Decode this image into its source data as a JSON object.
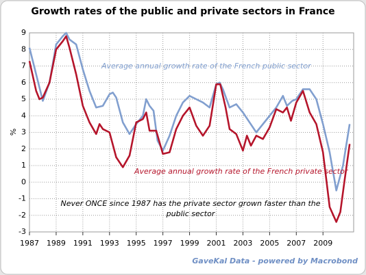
{
  "chart_data": {
    "type": "line",
    "title": "Growth rates of the public and private sectors in France",
    "ylabel": "%",
    "source": "GaveKal Data - powered by Macrobond",
    "annotations": [
      "Average annual growth rate of the French public sector",
      "Average annual growth rate of the French private sector",
      "Never ONCE since 1987 has the private sector grown faster than the",
      "public sector"
    ],
    "xlim": [
      1987,
      2011.3
    ],
    "xticks": [
      1987,
      1989,
      1991,
      1993,
      1995,
      1997,
      1999,
      2001,
      2003,
      2005,
      2007,
      2009
    ],
    "ylim": [
      -3,
      9
    ],
    "yticks": [
      -3,
      -2,
      -1,
      0,
      1,
      2,
      3,
      4,
      5,
      6,
      7,
      8,
      9
    ],
    "grid": true,
    "series": [
      {
        "name": "Average annual growth rate of the French public sector",
        "color": "#819fcf",
        "x": [
          1987,
          1987.5,
          1988,
          1988.5,
          1989,
          1989.5,
          1989.75,
          1990,
          1990.5,
          1991,
          1991.5,
          1992,
          1992.5,
          1993,
          1993.25,
          1993.5,
          1994,
          1994.5,
          1995,
          1995.5,
          1995.75,
          1996,
          1996.3,
          1996.6,
          1997,
          1997.5,
          1998,
          1998.5,
          1999,
          1999.5,
          2000,
          2000.5,
          2001,
          2001.25,
          2001.5,
          2002,
          2002.5,
          2003,
          2003.5,
          2004,
          2004.5,
          2005,
          2005.5,
          2006,
          2006.3,
          2006.7,
          2007,
          2007.5,
          2008,
          2008.5,
          2009,
          2009.5,
          2010,
          2010.5,
          2011
        ],
        "values": [
          8.1,
          6.5,
          4.9,
          6.0,
          8.3,
          8.8,
          9.0,
          8.6,
          8.3,
          6.8,
          5.5,
          4.5,
          4.6,
          5.3,
          5.4,
          5.1,
          3.6,
          2.9,
          3.5,
          4.0,
          5.0,
          4.6,
          4.3,
          2.5,
          1.9,
          2.8,
          4.0,
          4.8,
          5.2,
          5.0,
          4.8,
          4.5,
          5.9,
          6.0,
          5.6,
          4.5,
          4.7,
          4.2,
          3.6,
          3.0,
          3.5,
          4.0,
          4.5,
          5.2,
          4.6,
          4.9,
          5.0,
          5.6,
          5.6,
          5.0,
          3.5,
          1.8,
          -0.5,
          1.0,
          3.5
        ]
      },
      {
        "name": "Average annual growth rate of the French private sector",
        "color": "#b5152b",
        "x": [
          1987,
          1987.5,
          1987.75,
          1988,
          1988.5,
          1989,
          1989.5,
          1989.75,
          1990,
          1990.5,
          1991,
          1991.5,
          1992,
          1992.25,
          1992.5,
          1993,
          1993.5,
          1994,
          1994.5,
          1995,
          1995.5,
          1995.75,
          1996,
          1996.5,
          1997,
          1997.5,
          1998,
          1998.5,
          1999,
          1999.5,
          2000,
          2000.5,
          2001,
          2001.3,
          2001.7,
          2002,
          2002.5,
          2003,
          2003.3,
          2003.6,
          2004,
          2004.5,
          2005,
          2005.5,
          2006,
          2006.3,
          2006.6,
          2007,
          2007.5,
          2008,
          2008.5,
          2009,
          2009.5,
          2010,
          2010.3,
          2010.6,
          2011
        ],
        "values": [
          7.3,
          5.5,
          5.0,
          5.1,
          6.0,
          8.0,
          8.5,
          8.8,
          8.1,
          6.5,
          4.6,
          3.6,
          2.9,
          3.5,
          3.2,
          3.0,
          1.5,
          0.9,
          1.6,
          3.6,
          3.8,
          4.2,
          3.1,
          3.1,
          1.7,
          1.8,
          3.2,
          4.0,
          4.5,
          3.4,
          2.8,
          3.4,
          5.9,
          5.9,
          4.5,
          3.2,
          2.9,
          1.9,
          2.8,
          2.2,
          2.8,
          2.6,
          3.3,
          4.4,
          4.2,
          4.5,
          3.7,
          4.8,
          5.5,
          4.2,
          3.5,
          1.8,
          -1.5,
          -2.4,
          -1.8,
          0.0,
          2.3
        ]
      }
    ]
  }
}
